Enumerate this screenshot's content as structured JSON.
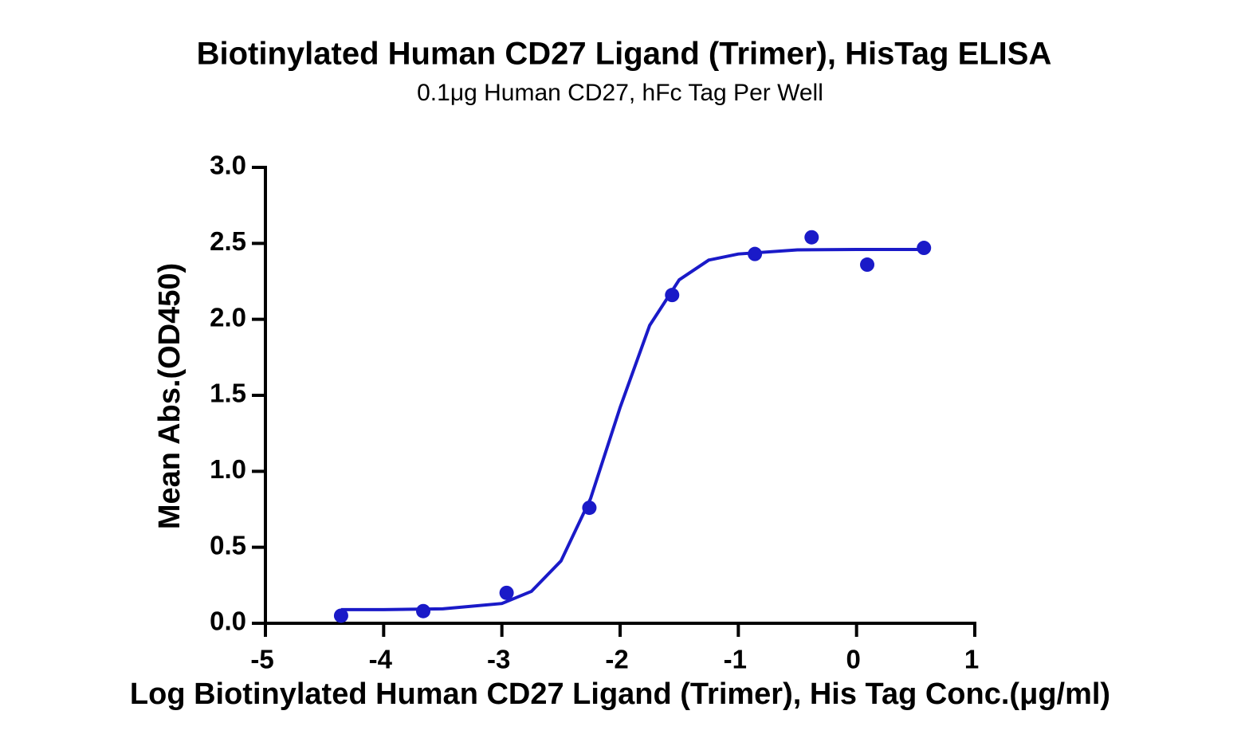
{
  "chart_data": {
    "type": "scatter",
    "title": "Biotinylated Human CD27 Ligand (Trimer), HisTag ELISA",
    "subtitle": "0.1μg Human CD27, hFc Tag Per Well",
    "x_label": "Log Biotinylated Human CD27 Ligand (Trimer), His Tag Conc.(μg/ml)",
    "y_label": "Mean Abs.(OD450)",
    "xlim": [
      -5,
      1
    ],
    "xticks": [
      -5,
      -4,
      -3,
      -2,
      -1,
      0,
      1
    ],
    "ylim": [
      0,
      3
    ],
    "yticks": [
      {
        "value": 0,
        "label": "0.0"
      },
      {
        "value": 0.5,
        "label": "0.5"
      },
      {
        "value": 1,
        "label": "1.0"
      },
      {
        "value": 1.5,
        "label": "1.5"
      },
      {
        "value": 2,
        "label": "2.0"
      },
      {
        "value": 2.5,
        "label": "2.5"
      },
      {
        "value": 3,
        "label": "3.0"
      }
    ],
    "grid": false,
    "series": [
      {
        "mode": "markers",
        "color": "#1a1ac8",
        "x": [
          -4.36,
          -3.665,
          -2.96,
          -2.26,
          -1.56,
          -0.86,
          -0.38,
          0.09,
          0.57
        ],
        "values": [
          0.05,
          0.08,
          0.2,
          0.76,
          2.16,
          2.43,
          2.54,
          2.36,
          2.47
        ]
      },
      {
        "mode": "line",
        "color": "#1a1ac8",
        "x": [
          -4.36,
          -4.0,
          -3.5,
          -3.0,
          -2.75,
          -2.5,
          -2.25,
          -2.0,
          -1.75,
          -1.5,
          -1.25,
          -1.0,
          -0.5,
          0,
          0.57
        ],
        "values": [
          0.09,
          0.09,
          0.095,
          0.13,
          0.21,
          0.41,
          0.82,
          1.42,
          1.96,
          2.26,
          2.39,
          2.43,
          2.457,
          2.46,
          2.46
        ]
      }
    ]
  }
}
